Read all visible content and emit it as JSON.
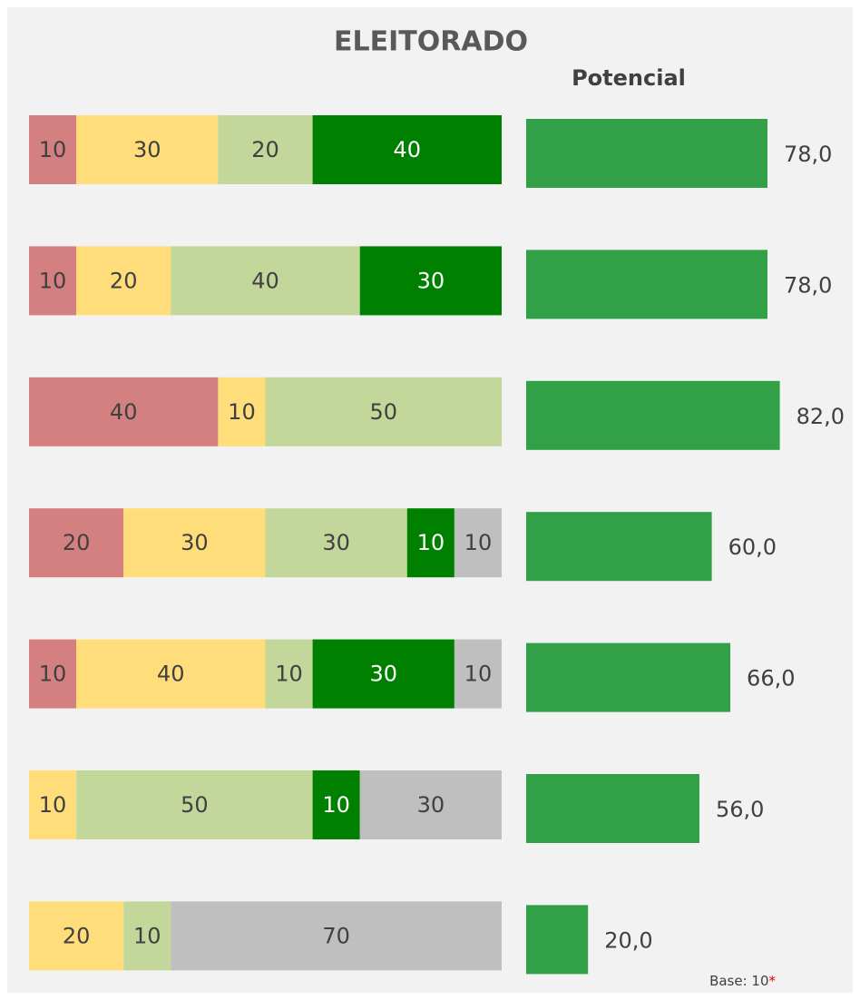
{
  "chart_data": [
    {
      "type": "stacked_bar",
      "title": "ELEITORADO",
      "xlim": [
        0,
        100
      ],
      "series": [
        {
          "color": "#d48080",
          "values": [
            10,
            10,
            40,
            20,
            10,
            null,
            null
          ]
        },
        {
          "color": "#ffdd7a",
          "values": [
            30,
            20,
            10,
            30,
            40,
            10,
            20
          ]
        },
        {
          "color": "#c4d79b",
          "values": [
            20,
            40,
            50,
            30,
            10,
            50,
            10
          ]
        },
        {
          "color": "#008000",
          "values": [
            40,
            30,
            null,
            10,
            30,
            10,
            null
          ]
        },
        {
          "color": "#bfbfbf",
          "values": [
            null,
            null,
            null,
            10,
            10,
            30,
            70
          ]
        }
      ]
    },
    {
      "type": "bar",
      "title": "Potencial",
      "xlim": [
        0,
        100
      ],
      "color": "#31a047",
      "values": [
        78,
        78,
        82,
        60,
        66,
        56,
        20
      ],
      "value_labels": [
        "78,0",
        "78,0",
        "82,0",
        "60,0",
        "66,0",
        "56,0",
        "20,0"
      ]
    }
  ],
  "footnote": {
    "text": "Base: 10",
    "mark": "*"
  }
}
